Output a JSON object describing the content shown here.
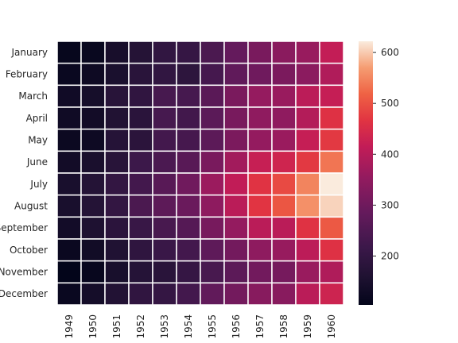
{
  "chart_data": {
    "type": "heatmap",
    "title": "",
    "xlabel": "",
    "ylabel": "",
    "x_categories": [
      "1949",
      "1950",
      "1951",
      "1952",
      "1953",
      "1954",
      "1955",
      "1956",
      "1957",
      "1958",
      "1959",
      "1960"
    ],
    "y_categories": [
      "January",
      "February",
      "March",
      "April",
      "May",
      "June",
      "July",
      "August",
      "September",
      "October",
      "November",
      "December"
    ],
    "values": [
      [
        112,
        115,
        145,
        171,
        196,
        204,
        242,
        284,
        315,
        340,
        360,
        417
      ],
      [
        118,
        126,
        150,
        180,
        196,
        188,
        233,
        277,
        301,
        318,
        342,
        391
      ],
      [
        132,
        141,
        178,
        193,
        236,
        235,
        267,
        317,
        356,
        362,
        406,
        419
      ],
      [
        129,
        135,
        163,
        181,
        235,
        227,
        269,
        313,
        348,
        348,
        396,
        461
      ],
      [
        121,
        125,
        172,
        183,
        229,
        234,
        270,
        318,
        355,
        363,
        420,
        472
      ],
      [
        135,
        149,
        178,
        218,
        243,
        264,
        315,
        374,
        422,
        435,
        472,
        535
      ],
      [
        148,
        170,
        199,
        230,
        264,
        302,
        364,
        413,
        465,
        491,
        548,
        622
      ],
      [
        148,
        170,
        199,
        242,
        272,
        293,
        347,
        405,
        467,
        505,
        559,
        606
      ],
      [
        136,
        158,
        184,
        209,
        237,
        259,
        312,
        355,
        404,
        404,
        463,
        508
      ],
      [
        119,
        133,
        162,
        191,
        211,
        229,
        274,
        306,
        347,
        359,
        407,
        461
      ],
      [
        104,
        114,
        146,
        172,
        180,
        203,
        237,
        271,
        305,
        310,
        362,
        390
      ],
      [
        118,
        140,
        166,
        194,
        201,
        229,
        278,
        306,
        336,
        337,
        405,
        432
      ]
    ],
    "colorbar": {
      "ticks": [
        200,
        300,
        400,
        500,
        600
      ],
      "range": [
        104,
        622
      ]
    },
    "colormap": "rocket"
  }
}
